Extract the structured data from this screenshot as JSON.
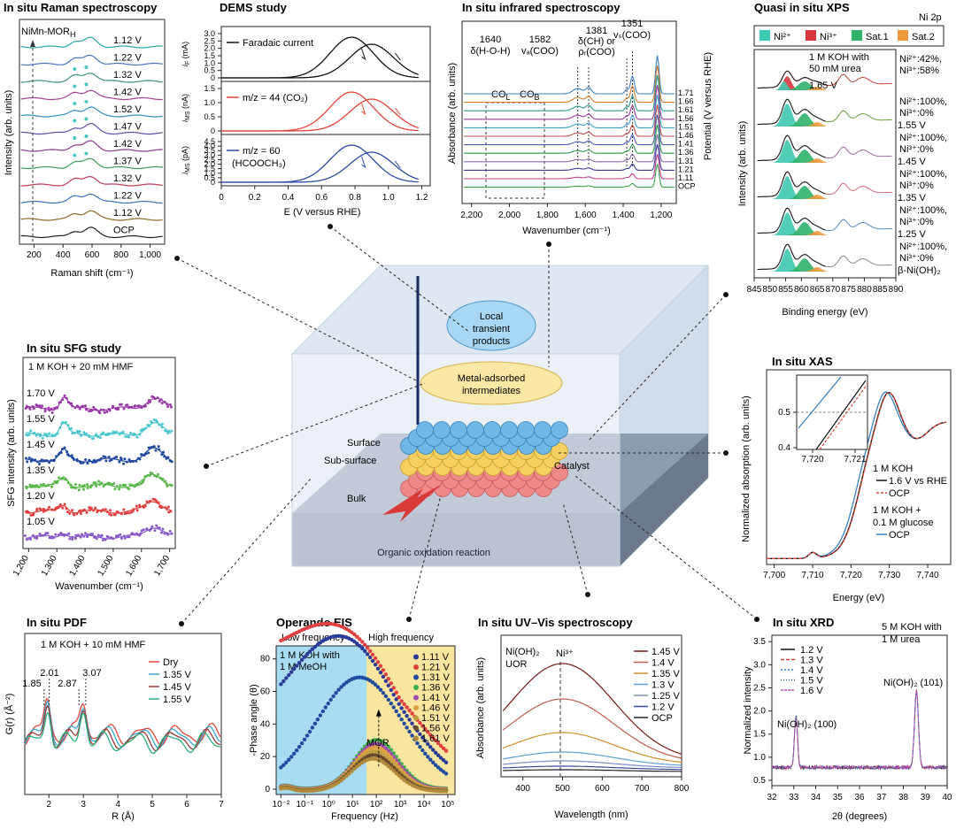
{
  "center": {
    "local_products": [
      "Local",
      "transient",
      "products"
    ],
    "intermediates": [
      "Metal-adsorbed",
      "intermediates"
    ],
    "surface": "Surface",
    "subsurface": "Sub-surface",
    "bulk": "Bulk",
    "catalyst": "Catalyst",
    "reaction": "Organic oxidation reaction"
  },
  "raman": {
    "title": "In situ Raman spectroscopy",
    "ylabel": "Intensity (arb. units)",
    "xlabel": "Raman shift (cm⁻¹)",
    "marker": "NiMn-MOR",
    "marker_sub": "H",
    "xticks": [
      "200",
      "400",
      "600",
      "800",
      "1,000"
    ],
    "potentials": [
      "1.12 V",
      "1.22 V",
      "1.32 V",
      "1.42 V",
      "1.52 V",
      "1.47 V",
      "1.42 V",
      "1.37 V",
      "1.32 V",
      "1.22 V",
      "1.12 V",
      "OCP"
    ],
    "colors": [
      "#2aa6a8",
      "#4a74c0",
      "#3d8f7a",
      "#a34090",
      "#2f8fc0",
      "#5b4fa3",
      "#8a3a8a",
      "#3f9a5b",
      "#c03a56",
      "#3a70b8",
      "#8a6a2a",
      "#222222"
    ]
  },
  "dems": {
    "title": "DEMS study",
    "panels": [
      {
        "legend": "Faradaic current",
        "ylabel": "i",
        "ysub": "F",
        "yunit": " (mA)",
        "yticks": [
          "0",
          "0.5",
          "1.0",
          "1.5",
          "2.0",
          "2.5",
          "3.0"
        ],
        "color": "#111111"
      },
      {
        "legend": "m/z = 44 (CO₂)",
        "ylabel": "i",
        "ysub": "MS",
        "yunit": " (nA)",
        "yticks": [
          "0",
          "0.5",
          "1.0",
          "1.5"
        ],
        "color": "#e0453a"
      },
      {
        "legend": "m/z = 60",
        "legend2": "(HCOOCH₃)",
        "ylabel": "i",
        "ysub": "MS",
        "yunit": " (pA)",
        "yticks": [
          "0",
          "0.5",
          "1.0",
          "1.5",
          "2.0",
          "2.5",
          "3.0",
          "3.5",
          "4.0",
          "4.5"
        ],
        "color": "#2c4aa8"
      }
    ],
    "xticks": [
      "0",
      "0.2",
      "0.4",
      "0.6",
      "0.8",
      "1.0",
      "1.2"
    ],
    "xlabel": "E (V versus RHE)"
  },
  "ir": {
    "title": "In situ infrared spectroscopy",
    "annotations": [
      {
        "top": "1640",
        "bottom": "δ(H-O-H)"
      },
      {
        "top": "1582",
        "bottom": "vₐ(COO)"
      },
      {
        "top": "1381",
        "mid": "δ(CH) or",
        "bottom": "ρᵣ(COO)"
      },
      {
        "top": "1351",
        "bottom": "vₛ(COO)"
      }
    ],
    "box_labels": [
      "CO",
      "CO"
    ],
    "box_subs": [
      "L",
      "B"
    ],
    "potentials": [
      "1.71",
      "1.66",
      "1.61",
      "1.56",
      "1.51",
      "1.46",
      "1.41",
      "1.36",
      "1.31",
      "1.21",
      "1.11",
      "OCP"
    ],
    "ylabel": "Absorbance (arb. units)",
    "ylabel_right": "Potential (V versus RHE)",
    "xticks": [
      "2,200",
      "2,000",
      "1,800",
      "1,600",
      "1,400",
      "1,200"
    ],
    "xlabel": "Wavenumber (cm⁻¹)",
    "colors": [
      "#3a7fc0",
      "#d07a2a",
      "#2a9a8a",
      "#9a3a9a",
      "#3aa0d0",
      "#c04a4a",
      "#4a5ab0",
      "#2a9a4a",
      "#8a6ab0",
      "#3a3a9a",
      "#c03a8a",
      "#3aa04a"
    ]
  },
  "xps": {
    "title": "Quasi in situ XPS",
    "subtitle": "Ni 2p",
    "legend": [
      {
        "label": "Ni²⁺",
        "color": "#3fc9b0"
      },
      {
        "label": "Ni³⁺",
        "color": "#d9363e"
      },
      {
        "label": "Sat.1",
        "color": "#2fb36a"
      },
      {
        "label": "Sat.2",
        "color": "#f0993a"
      }
    ],
    "condition": [
      "1 M KOH with",
      "50 mM urea"
    ],
    "rows": [
      {
        "a": "Ni²⁺:42%,",
        "b": "Ni³⁺:58%",
        "v": "1.65 V"
      },
      {
        "a": "Ni²⁺:100%,",
        "b": "Ni³⁺:0%",
        "v": "1.55 V"
      },
      {
        "a": "Ni²⁺:100%,",
        "b": "Ni³⁺:0%",
        "v": "1.45 V"
      },
      {
        "a": "Ni²⁺:100%,",
        "b": "Ni³⁺:0%",
        "v": "1.35 V"
      },
      {
        "a": "Ni²⁺:100%,",
        "b": "Ni³⁺:0%",
        "v": "1.25 V"
      },
      {
        "a": "Ni²⁺:100%,",
        "b": "Ni³⁺:0%",
        "v": "β-Ni(OH)₂"
      }
    ],
    "ylabel": "Intensity (arb. units)",
    "xticks": [
      "845",
      "850",
      "855",
      "860",
      "865",
      "870",
      "875",
      "880",
      "885",
      "890"
    ],
    "xlabel": "Binding energy (eV)",
    "line_colors": [
      "#c0403a",
      "#6a9a3a",
      "#9a6a9a",
      "#d06a7a",
      "#5a8ac0",
      "#8a8a8a"
    ]
  },
  "sfg": {
    "title": "In situ SFG study",
    "condition": "1 M KOH + 20 mM HMF",
    "potentials": [
      "1.70 V",
      "1.55 V",
      "1.45 V",
      "1.35 V",
      "1.20 V",
      "1.05 V"
    ],
    "colors": [
      "#9a3aa8",
      "#4ac6d0",
      "#1f4aa0",
      "#5ab84a",
      "#e04040",
      "#8a5ac8"
    ],
    "ylabel": "SFG intensity (arb. units)",
    "xticks": [
      "1,200",
      "1,300",
      "1,400",
      "1,500",
      "1,600",
      "1,700"
    ],
    "xlabel": "Wavenumber (cm⁻¹)"
  },
  "xas": {
    "title": "In situ XAS",
    "inset_yticks": [
      "0.5",
      "0.4"
    ],
    "inset_xticks": [
      "7,720",
      "7,721"
    ],
    "legend": [
      {
        "label": "1 M KOH"
      },
      {
        "label": "1.6 V vs RHE",
        "color": "#111111"
      },
      {
        "label": "OCP",
        "color": "#e0453a"
      },
      {
        "label": "1 M KOH +"
      },
      {
        "label": "0.1 M glucose"
      },
      {
        "label": "OCP",
        "color": "#3a7fc0"
      }
    ],
    "ylabel": "Normalized absorption (arb. units)",
    "xticks": [
      "7,700",
      "7,710",
      "7,720",
      "7,730",
      "7,740"
    ],
    "xlabel": "Energy (eV)"
  },
  "pdf": {
    "title": "In situ PDF",
    "condition": "1 M KOH + 10 mM HMF",
    "peaks": [
      "1.85",
      "2.01",
      "2.87",
      "3.07"
    ],
    "legend": [
      {
        "label": "Dry",
        "color": "#e0453a"
      },
      {
        "label": "1.35 V",
        "color": "#3aa6d0"
      },
      {
        "label": "1.45 V",
        "color": "#9a3a3a"
      },
      {
        "label": "1.55 V",
        "color": "#2ab07a"
      }
    ],
    "ylabel": "G(r) (Å⁻²)",
    "xticks": [
      "2",
      "3",
      "4",
      "5",
      "6",
      "7"
    ],
    "xlabel": "R (Å)"
  },
  "eis": {
    "title": "Operando EIS",
    "low": "Low frequency",
    "high": "High frequency",
    "condition": [
      "1 M KOH with",
      "1 M MeOH"
    ],
    "potentials": [
      "1.11 V",
      "1.21 V",
      "1.31 V",
      "1.36 V",
      "1.41 V",
      "1.46 V",
      "1.51 V",
      "1.56 V",
      "1.61 V"
    ],
    "colors": [
      "#2a3a9a",
      "#e04040",
      "#1f4aa0",
      "#3ab04a",
      "#a04ab0",
      "#e0a040",
      "#c0a040",
      "#6a4a2a",
      "#b08a3a"
    ],
    "mor": "MOR",
    "ylabel": "-Phase angle (θ)",
    "yticks": [
      "0",
      "20",
      "40",
      "60",
      "80"
    ],
    "xticks": [
      "10⁻²",
      "10⁻¹",
      "10⁰",
      "10¹",
      "10²",
      "10³",
      "10⁴",
      "10⁵"
    ],
    "xlabel": "Frequency (Hz)"
  },
  "uvvis": {
    "title": "In situ UV–Vis spectroscopy",
    "condition": [
      "Ni(OH)₂",
      "UOR"
    ],
    "marker": "Ni³⁺",
    "legend": [
      {
        "label": "1.45 V",
        "color": "#7a1a1a"
      },
      {
        "label": "1.4 V",
        "color": "#c05a50"
      },
      {
        "label": "1.35 V",
        "color": "#d0902a"
      },
      {
        "label": "1.3 V",
        "color": "#5aa0d0"
      },
      {
        "label": "1.25 V",
        "color": "#7a8ac8"
      },
      {
        "label": "1.2 V",
        "color": "#3a4a9a"
      },
      {
        "label": "OCP",
        "color": "#222222"
      }
    ],
    "ylabel": "Absorbance (arb. units)",
    "xticks": [
      "400",
      "500",
      "600",
      "700",
      "800"
    ],
    "xlabel": "Wavelength (nm)"
  },
  "xrd": {
    "title": "In situ XRD",
    "condition": [
      "5 M KOH with",
      "1 M urea"
    ],
    "legend": [
      {
        "label": "1.2 V",
        "color": "#111111"
      },
      {
        "label": "1.3 V",
        "color": "#e0453a"
      },
      {
        "label": "1.4 V",
        "color": "#3a7fc0"
      },
      {
        "label": "1.5 V",
        "color": "#1f5a8a"
      },
      {
        "label": "1.6 V",
        "color": "#c050c0"
      }
    ],
    "peak1": "Ni(OH)₂ (100)",
    "peak2": "Ni(OH)₂ (101)",
    "ylabel": "Normalized intensity",
    "yticks": [
      "0.5",
      "1.0",
      "1.5",
      "2.0",
      "2.5",
      "3.0",
      "3.5"
    ],
    "xticks": [
      "32",
      "33",
      "34",
      "35",
      "36",
      "37",
      "38",
      "39",
      "40"
    ],
    "xlabel": "2θ (degrees)"
  }
}
